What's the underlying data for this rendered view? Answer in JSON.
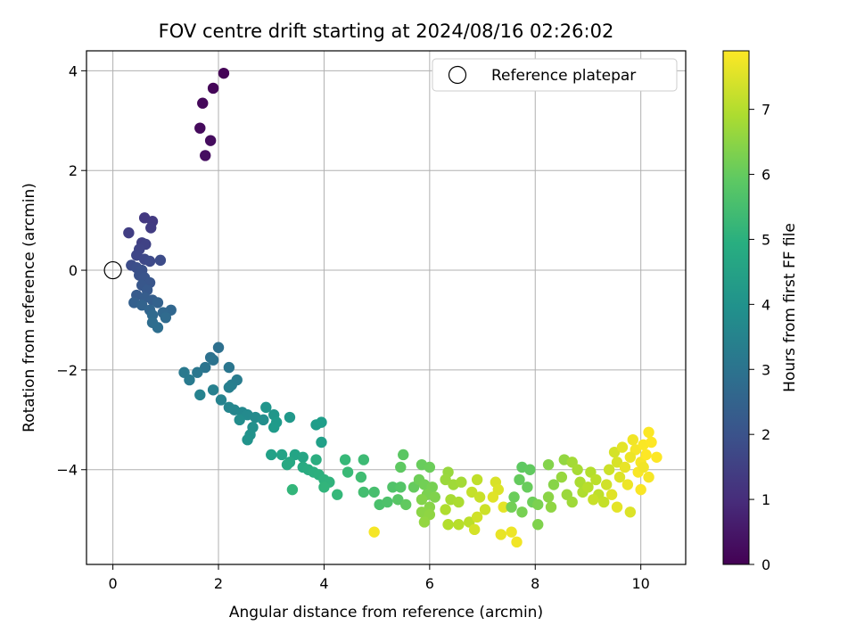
{
  "chart_data": {
    "type": "scatter",
    "title": "FOV centre drift starting at 2024/08/16 02:26:02",
    "xlabel": "Angular distance from reference (arcmin)",
    "ylabel": "Rotation from reference (arcmin)",
    "xlim": [
      -0.5,
      10.85
    ],
    "ylim": [
      -5.9,
      4.4
    ],
    "xticks": [
      0,
      2,
      4,
      6,
      8,
      10
    ],
    "yticks": [
      -4,
      -2,
      0,
      2,
      4
    ],
    "grid": true,
    "legend": {
      "position": "top-right",
      "entries": [
        "Reference platepar"
      ]
    },
    "reference_point": {
      "x": 0,
      "y": 0,
      "marker": "hollow-circle"
    },
    "colorbar": {
      "label": "Hours from first FF file",
      "range": [
        0,
        7.9
      ],
      "ticks": [
        0,
        1,
        2,
        3,
        4,
        5,
        6,
        7
      ],
      "colormap": "viridis"
    },
    "points": [
      [
        2.1,
        3.95,
        0.05
      ],
      [
        1.9,
        3.65,
        0.1
      ],
      [
        1.7,
        3.35,
        0.15
      ],
      [
        1.65,
        2.85,
        0.2
      ],
      [
        1.85,
        2.6,
        0.25
      ],
      [
        1.75,
        2.3,
        0.3
      ],
      [
        0.6,
        1.05,
        1.3
      ],
      [
        0.75,
        0.98,
        1.35
      ],
      [
        0.72,
        0.85,
        1.4
      ],
      [
        0.3,
        0.75,
        1.45
      ],
      [
        0.55,
        0.55,
        1.5
      ],
      [
        0.62,
        0.52,
        1.55
      ],
      [
        0.5,
        0.42,
        1.6
      ],
      [
        0.45,
        0.3,
        1.65
      ],
      [
        0.6,
        0.22,
        1.7
      ],
      [
        0.7,
        0.18,
        1.75
      ],
      [
        0.9,
        0.2,
        1.8
      ],
      [
        0.35,
        0.1,
        1.85
      ],
      [
        0.45,
        0.05,
        1.9
      ],
      [
        0.55,
        0.0,
        1.95
      ],
      [
        0.5,
        -0.1,
        2.0
      ],
      [
        0.6,
        -0.15,
        2.05
      ],
      [
        0.7,
        -0.25,
        2.1
      ],
      [
        0.55,
        -0.3,
        2.15
      ],
      [
        0.65,
        -0.4,
        2.2
      ],
      [
        0.45,
        -0.5,
        2.25
      ],
      [
        0.6,
        -0.55,
        2.3
      ],
      [
        0.75,
        -0.6,
        2.35
      ],
      [
        0.4,
        -0.65,
        2.4
      ],
      [
        0.85,
        -0.65,
        2.45
      ],
      [
        0.55,
        -0.7,
        2.5
      ],
      [
        0.7,
        -0.8,
        2.55
      ],
      [
        1.1,
        -0.8,
        2.6
      ],
      [
        0.95,
        -0.85,
        2.65
      ],
      [
        0.75,
        -0.9,
        2.7
      ],
      [
        1.0,
        -0.95,
        2.75
      ],
      [
        0.75,
        -1.05,
        2.8
      ],
      [
        0.85,
        -1.15,
        2.85
      ],
      [
        2.0,
        -1.55,
        2.9
      ],
      [
        1.85,
        -1.75,
        2.95
      ],
      [
        1.9,
        -1.8,
        3.0
      ],
      [
        1.75,
        -1.95,
        3.05
      ],
      [
        2.2,
        -1.95,
        3.1
      ],
      [
        1.6,
        -2.05,
        3.15
      ],
      [
        1.35,
        -2.05,
        3.2
      ],
      [
        1.45,
        -2.2,
        3.25
      ],
      [
        2.35,
        -2.2,
        3.3
      ],
      [
        2.25,
        -2.3,
        3.35
      ],
      [
        2.2,
        -2.35,
        3.4
      ],
      [
        1.9,
        -2.4,
        3.45
      ],
      [
        1.65,
        -2.5,
        3.5
      ],
      [
        2.05,
        -2.6,
        3.55
      ],
      [
        2.2,
        -2.75,
        3.6
      ],
      [
        2.3,
        -2.8,
        3.65
      ],
      [
        2.45,
        -2.85,
        3.7
      ],
      [
        2.55,
        -2.9,
        3.75
      ],
      [
        2.7,
        -2.95,
        3.8
      ],
      [
        2.4,
        -3.0,
        3.85
      ],
      [
        2.85,
        -3.0,
        3.9
      ],
      [
        2.65,
        -3.15,
        3.95
      ],
      [
        2.6,
        -3.3,
        4.0
      ],
      [
        2.55,
        -3.4,
        4.05
      ],
      [
        2.9,
        -2.75,
        4.1
      ],
      [
        3.05,
        -2.9,
        4.15
      ],
      [
        3.35,
        -2.95,
        4.2
      ],
      [
        3.1,
        -3.05,
        4.25
      ],
      [
        3.05,
        -3.15,
        4.3
      ],
      [
        3.85,
        -3.1,
        4.35
      ],
      [
        3.95,
        -3.05,
        4.4
      ],
      [
        3.95,
        -3.45,
        4.45
      ],
      [
        3.0,
        -3.7,
        4.5
      ],
      [
        3.2,
        -3.7,
        4.55
      ],
      [
        3.45,
        -3.7,
        4.6
      ],
      [
        3.6,
        -3.75,
        4.65
      ],
      [
        3.35,
        -3.85,
        4.7
      ],
      [
        3.3,
        -3.9,
        4.75
      ],
      [
        3.6,
        -3.95,
        4.8
      ],
      [
        3.7,
        -4.0,
        4.85
      ],
      [
        3.85,
        -3.8,
        4.9
      ],
      [
        3.8,
        -4.05,
        4.95
      ],
      [
        3.9,
        -4.1,
        5.0
      ],
      [
        4.0,
        -4.2,
        5.05
      ],
      [
        4.1,
        -4.25,
        5.1
      ],
      [
        4.0,
        -4.35,
        5.15
      ],
      [
        3.4,
        -4.4,
        5.2
      ],
      [
        4.25,
        -4.5,
        5.25
      ],
      [
        4.4,
        -3.8,
        5.3
      ],
      [
        4.45,
        -4.05,
        5.35
      ],
      [
        4.75,
        -3.8,
        5.4
      ],
      [
        4.7,
        -4.15,
        5.45
      ],
      [
        4.75,
        -4.45,
        5.5
      ],
      [
        4.95,
        -4.45,
        5.55
      ],
      [
        5.05,
        -4.7,
        5.6
      ],
      [
        5.2,
        -4.65,
        5.65
      ],
      [
        5.3,
        -4.35,
        5.7
      ],
      [
        5.45,
        -4.35,
        5.75
      ],
      [
        5.4,
        -4.6,
        5.8
      ],
      [
        5.5,
        -3.7,
        5.85
      ],
      [
        5.45,
        -3.95,
        5.9
      ],
      [
        5.55,
        -4.7,
        5.95
      ],
      [
        5.7,
        -4.35,
        6.0
      ],
      [
        5.85,
        -3.9,
        6.05
      ],
      [
        6.0,
        -3.95,
        6.1
      ],
      [
        5.8,
        -4.2,
        6.15
      ],
      [
        5.9,
        -4.3,
        6.2
      ],
      [
        6.05,
        -4.35,
        6.25
      ],
      [
        5.95,
        -4.5,
        6.3
      ],
      [
        6.1,
        -4.55,
        6.35
      ],
      [
        5.85,
        -4.6,
        6.4
      ],
      [
        6.0,
        -4.75,
        6.45
      ],
      [
        5.85,
        -4.85,
        6.5
      ],
      [
        6.0,
        -4.9,
        6.55
      ],
      [
        5.9,
        -5.05,
        6.6
      ],
      [
        6.35,
        -4.05,
        6.65
      ],
      [
        6.3,
        -4.2,
        6.7
      ],
      [
        6.45,
        -4.3,
        6.75
      ],
      [
        6.6,
        -4.25,
        6.8
      ],
      [
        6.4,
        -4.6,
        6.85
      ],
      [
        6.55,
        -4.65,
        6.9
      ],
      [
        6.3,
        -4.8,
        6.95
      ],
      [
        6.35,
        -5.1,
        7.0
      ],
      [
        6.55,
        -5.1,
        7.05
      ],
      [
        6.75,
        -5.05,
        7.1
      ],
      [
        6.9,
        -4.2,
        7.15
      ],
      [
        6.8,
        -4.45,
        7.2
      ],
      [
        6.95,
        -4.55,
        7.25
      ],
      [
        7.05,
        -4.8,
        7.3
      ],
      [
        6.9,
        -4.95,
        7.35
      ],
      [
        6.85,
        -5.2,
        7.4
      ],
      [
        7.25,
        -4.25,
        7.45
      ],
      [
        7.3,
        -4.4,
        7.5
      ],
      [
        7.2,
        -4.55,
        7.55
      ],
      [
        7.4,
        -4.75,
        7.6
      ],
      [
        7.35,
        -5.3,
        7.65
      ],
      [
        7.55,
        -5.25,
        7.7
      ],
      [
        7.65,
        -5.45,
        7.75
      ],
      [
        4.95,
        -5.25,
        7.8
      ],
      [
        7.75,
        -3.95,
        5.9
      ],
      [
        7.9,
        -4.0,
        5.95
      ],
      [
        7.7,
        -4.2,
        6.0
      ],
      [
        7.85,
        -4.35,
        6.05
      ],
      [
        7.6,
        -4.55,
        6.1
      ],
      [
        7.95,
        -4.65,
        6.15
      ],
      [
        7.55,
        -4.75,
        6.2
      ],
      [
        7.75,
        -4.85,
        6.25
      ],
      [
        8.05,
        -4.7,
        6.3
      ],
      [
        8.05,
        -5.1,
        6.35
      ],
      [
        8.25,
        -3.9,
        6.4
      ],
      [
        8.35,
        -4.3,
        6.45
      ],
      [
        8.25,
        -4.55,
        6.5
      ],
      [
        8.3,
        -4.75,
        6.55
      ],
      [
        8.55,
        -3.8,
        6.6
      ],
      [
        8.5,
        -4.15,
        6.65
      ],
      [
        8.6,
        -4.5,
        6.7
      ],
      [
        8.7,
        -4.65,
        6.75
      ],
      [
        8.7,
        -3.85,
        6.8
      ],
      [
        8.8,
        -4.0,
        6.85
      ],
      [
        8.85,
        -4.25,
        6.9
      ],
      [
        8.9,
        -4.45,
        6.95
      ],
      [
        9.05,
        -4.05,
        7.0
      ],
      [
        9.0,
        -4.35,
        7.05
      ],
      [
        9.15,
        -4.2,
        7.1
      ],
      [
        9.2,
        -4.5,
        7.15
      ],
      [
        9.3,
        -4.65,
        7.2
      ],
      [
        9.1,
        -4.6,
        7.25
      ],
      [
        9.4,
        -4.0,
        7.3
      ],
      [
        9.35,
        -4.3,
        7.35
      ],
      [
        9.5,
        -3.65,
        7.4
      ],
      [
        9.55,
        -3.85,
        7.45
      ],
      [
        9.6,
        -4.15,
        7.5
      ],
      [
        9.45,
        -4.5,
        7.55
      ],
      [
        9.55,
        -4.75,
        7.6
      ],
      [
        9.7,
        -3.95,
        7.65
      ],
      [
        9.75,
        -4.3,
        7.7
      ],
      [
        9.85,
        -3.4,
        7.75
      ],
      [
        9.9,
        -3.6,
        7.8
      ],
      [
        10.0,
        -3.85,
        7.82
      ],
      [
        9.95,
        -4.05,
        7.84
      ],
      [
        10.05,
        -3.5,
        7.86
      ],
      [
        10.15,
        -3.25,
        7.88
      ],
      [
        10.2,
        -3.45,
        7.9
      ],
      [
        10.1,
        -3.7,
        7.9
      ],
      [
        10.3,
        -3.75,
        7.9
      ],
      [
        10.0,
        -4.4,
        7.85
      ],
      [
        10.15,
        -4.15,
        7.8
      ],
      [
        9.8,
        -4.85,
        7.5
      ],
      [
        9.65,
        -3.55,
        7.6
      ],
      [
        9.8,
        -3.75,
        7.7
      ],
      [
        10.05,
        -3.95,
        7.75
      ]
    ]
  }
}
